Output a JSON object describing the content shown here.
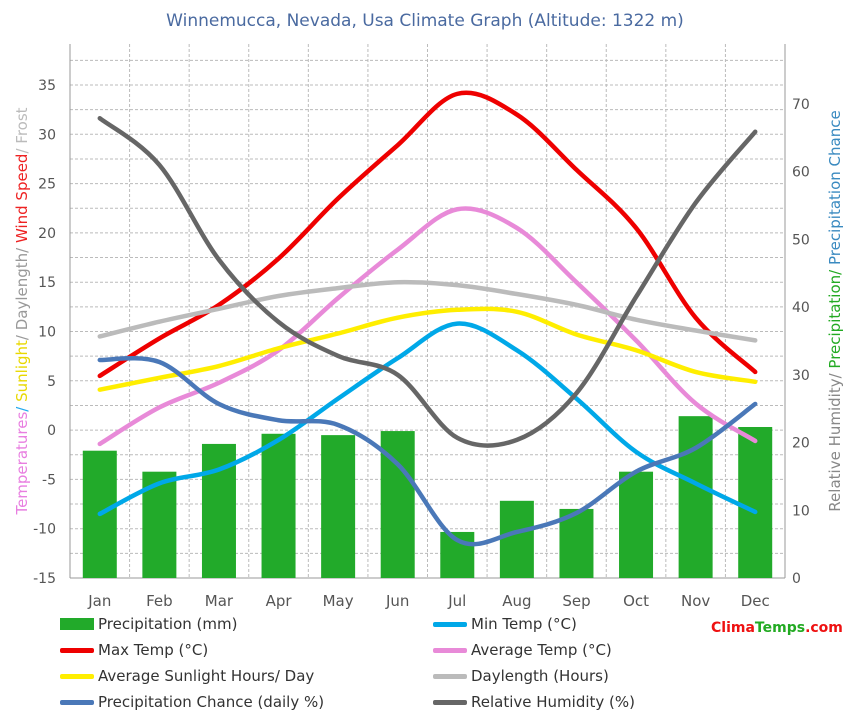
{
  "chart_data": {
    "type": "line",
    "title": "Winnemucca,  Nevada, Usa Climate Graph (Altitude: 1322 m)",
    "categories": [
      "Jan",
      "Feb",
      "Mar",
      "Apr",
      "May",
      "Jun",
      "Jul",
      "Aug",
      "Sep",
      "Oct",
      "Nov",
      "Dec"
    ],
    "left_axis": {
      "label_parts": [
        {
          "text": "Temperatures",
          "color": "#e87ee0"
        },
        {
          "text": "/ ",
          "color": "#22aaee"
        },
        {
          "text": "Sunlight",
          "color": "#e8d800"
        },
        {
          "text": "/ Daylength/ ",
          "color": "#999999"
        },
        {
          "text": "Wind Speed",
          "color": "#ee2222"
        },
        {
          "text": "/ Frost",
          "color": "#bbbbbb"
        }
      ],
      "ylim": [
        -15,
        40
      ],
      "ticks": [
        -15,
        -10,
        -5,
        0,
        5,
        10,
        15,
        20,
        25,
        30,
        35
      ]
    },
    "right_axis": {
      "label_parts": [
        {
          "text": "Relative Humidity/ ",
          "color": "#888888"
        },
        {
          "text": "Precipitation/ ",
          "color": "#22aa22"
        },
        {
          "text": "Precipitation Chance",
          "color": "#3a8ac0"
        }
      ],
      "ylim": [
        0,
        80
      ],
      "ticks": [
        0,
        10,
        20,
        30,
        40,
        50,
        60,
        70
      ]
    },
    "grid": true,
    "legend_position": "bottom",
    "series": [
      {
        "name": "Precipitation (mm)",
        "type": "bar",
        "axis": "right",
        "color": "#22aa2a",
        "values": [
          18.8,
          15.7,
          19.8,
          21.3,
          21.1,
          21.7,
          6.8,
          11.4,
          10.2,
          15.7,
          23.9,
          22.3
        ]
      },
      {
        "name": "Min Temp (°C)",
        "axis": "left",
        "color": "#00a8e8",
        "values": [
          -8.5,
          -5.4,
          -4,
          -1,
          3.2,
          7.3,
          10.8,
          8.1,
          3.2,
          -2.2,
          -5.4,
          -8.3
        ]
      },
      {
        "name": "Max Temp (°C)",
        "axis": "left",
        "color": "#ee0000",
        "values": [
          5.5,
          9.3,
          12.7,
          17.4,
          23.5,
          28.9,
          34.1,
          32,
          26.4,
          20.5,
          11.4,
          5.9
        ]
      },
      {
        "name": "Average Temp (°C)",
        "axis": "left",
        "color": "#e88ad8",
        "values": [
          -1.4,
          2.3,
          4.8,
          8.1,
          13.4,
          18.3,
          22.4,
          20.5,
          15,
          9.1,
          2.7,
          -1.1
        ]
      },
      {
        "name": "Average Sunlight Hours/ Day",
        "axis": "left",
        "color": "#ffee00",
        "values": [
          4.1,
          5.3,
          6.5,
          8.3,
          9.8,
          11.4,
          12.2,
          12,
          9.7,
          8.1,
          5.9,
          4.9
        ]
      },
      {
        "name": "Daylength (Hours)",
        "axis": "left",
        "color": "#bbbbbb",
        "values": [
          9.5,
          11,
          12.3,
          13.6,
          14.4,
          15,
          14.7,
          13.8,
          12.7,
          11.2,
          10.1,
          9.1
        ]
      },
      {
        "name": "Precipitation Chance (daily %)",
        "axis": "right",
        "color": "#4a78b8",
        "values": [
          32.2,
          31.9,
          25.7,
          23.3,
          22.6,
          16.8,
          5.6,
          6.8,
          9.6,
          15.7,
          19.2,
          25.7
        ]
      },
      {
        "name": "Relative Humidity (%)",
        "axis": "right",
        "color": "#666666",
        "values": [
          67.9,
          61,
          47,
          37.8,
          32.8,
          30,
          20.7,
          20.4,
          27.3,
          41.5,
          55.4,
          65.9
        ]
      }
    ]
  },
  "logo": {
    "part1": "Clima",
    "part2": "Temps",
    "part3": ".com",
    "color1": "#ee1111",
    "color2": "#22aa22"
  }
}
